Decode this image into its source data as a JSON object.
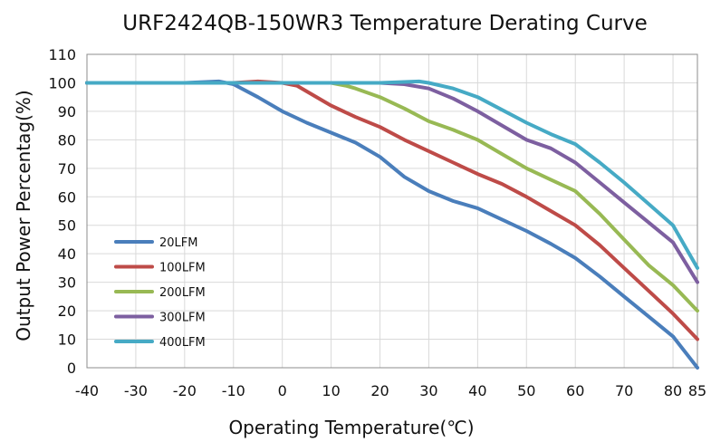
{
  "chart_data": {
    "type": "line",
    "title": "URF2424QB-150WR3 Temperature Derating Curve",
    "xlabel": "Operating Temperature(℃)",
    "ylabel": "Output Power Percentag(%)",
    "xlim": [
      -40,
      85
    ],
    "ylim": [
      0,
      110
    ],
    "xticks": [
      "-40",
      "-30",
      "-20",
      "-10",
      "0",
      "10",
      "20",
      "30",
      "40",
      "50",
      "60",
      "70",
      "80",
      "85"
    ],
    "yticks": [
      "0",
      "10",
      "20",
      "30",
      "40",
      "50",
      "60",
      "70",
      "80",
      "90",
      "100",
      "110"
    ],
    "grid": true,
    "legend_position": "bottom-left",
    "series": [
      {
        "name": "20LFM",
        "color": "#4a7ebb",
        "points": [
          [
            -40,
            100
          ],
          [
            -30,
            100
          ],
          [
            -20,
            100
          ],
          [
            -13,
            100.5
          ],
          [
            -10,
            99.5
          ],
          [
            -5,
            95
          ],
          [
            0,
            90
          ],
          [
            5,
            86
          ],
          [
            10,
            82.5
          ],
          [
            15,
            79
          ],
          [
            20,
            74
          ],
          [
            25,
            67
          ],
          [
            30,
            62
          ],
          [
            35,
            58.5
          ],
          [
            40,
            56
          ],
          [
            45,
            52
          ],
          [
            50,
            48
          ],
          [
            55,
            43.5
          ],
          [
            60,
            38.5
          ],
          [
            65,
            32
          ],
          [
            70,
            25
          ],
          [
            75,
            18
          ],
          [
            80,
            11
          ],
          [
            85,
            0
          ]
        ]
      },
      {
        "name": "100LFM",
        "color": "#be4b48",
        "points": [
          [
            -40,
            100
          ],
          [
            -30,
            100
          ],
          [
            -20,
            100
          ],
          [
            -10,
            100
          ],
          [
            -5,
            100.5
          ],
          [
            0,
            100
          ],
          [
            3,
            99
          ],
          [
            5,
            97
          ],
          [
            10,
            92
          ],
          [
            15,
            88
          ],
          [
            20,
            84.5
          ],
          [
            25,
            80
          ],
          [
            30,
            76
          ],
          [
            35,
            72
          ],
          [
            40,
            68
          ],
          [
            45,
            64.5
          ],
          [
            50,
            60
          ],
          [
            55,
            55
          ],
          [
            60,
            50
          ],
          [
            65,
            43
          ],
          [
            70,
            35
          ],
          [
            75,
            27
          ],
          [
            80,
            19
          ],
          [
            85,
            10
          ]
        ]
      },
      {
        "name": "200LFM",
        "color": "#98b954",
        "points": [
          [
            -40,
            100
          ],
          [
            -30,
            100
          ],
          [
            -20,
            100
          ],
          [
            -10,
            100
          ],
          [
            0,
            100
          ],
          [
            10,
            100
          ],
          [
            13,
            99
          ],
          [
            15,
            98
          ],
          [
            20,
            95
          ],
          [
            25,
            91
          ],
          [
            30,
            86.5
          ],
          [
            35,
            83.5
          ],
          [
            40,
            80
          ],
          [
            45,
            75
          ],
          [
            50,
            70
          ],
          [
            55,
            66
          ],
          [
            60,
            62
          ],
          [
            65,
            54
          ],
          [
            70,
            45
          ],
          [
            75,
            36
          ],
          [
            80,
            29
          ],
          [
            85,
            20
          ]
        ]
      },
      {
        "name": "300LFM",
        "color": "#7d5fa0",
        "points": [
          [
            -40,
            100
          ],
          [
            -30,
            100
          ],
          [
            -20,
            100
          ],
          [
            -10,
            100
          ],
          [
            0,
            100
          ],
          [
            10,
            100
          ],
          [
            20,
            100
          ],
          [
            25,
            99.5
          ],
          [
            30,
            98
          ],
          [
            35,
            94.5
          ],
          [
            40,
            90
          ],
          [
            45,
            85
          ],
          [
            50,
            80
          ],
          [
            55,
            77
          ],
          [
            60,
            72
          ],
          [
            65,
            65
          ],
          [
            70,
            58
          ],
          [
            75,
            51
          ],
          [
            80,
            44
          ],
          [
            85,
            30
          ]
        ]
      },
      {
        "name": "400LFM",
        "color": "#46aac5",
        "points": [
          [
            -40,
            100
          ],
          [
            -30,
            100
          ],
          [
            -20,
            100
          ],
          [
            -10,
            100
          ],
          [
            0,
            100
          ],
          [
            10,
            100
          ],
          [
            20,
            100
          ],
          [
            28,
            100.5
          ],
          [
            30,
            100
          ],
          [
            35,
            98
          ],
          [
            40,
            95
          ],
          [
            45,
            90.5
          ],
          [
            50,
            86
          ],
          [
            55,
            82
          ],
          [
            60,
            78.5
          ],
          [
            65,
            72
          ],
          [
            70,
            65
          ],
          [
            75,
            57.5
          ],
          [
            80,
            50
          ],
          [
            85,
            35
          ]
        ]
      }
    ]
  }
}
